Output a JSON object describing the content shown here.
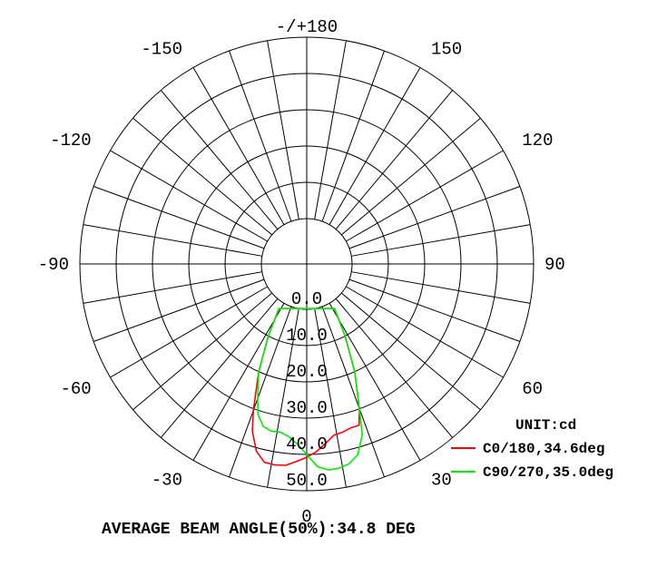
{
  "chart_data": {
    "type": "polar-line",
    "title": "",
    "unit_label": "UNIT:cd",
    "angle_labels": [
      {
        "angle": 180,
        "text": "-/+180"
      },
      {
        "angle": 150,
        "text": "150"
      },
      {
        "angle": -150,
        "text": "-150"
      },
      {
        "angle": 120,
        "text": "120"
      },
      {
        "angle": -120,
        "text": "-120"
      },
      {
        "angle": 90,
        "text": "90"
      },
      {
        "angle": -90,
        "text": "-90"
      },
      {
        "angle": 60,
        "text": "60"
      },
      {
        "angle": -60,
        "text": "-60"
      },
      {
        "angle": 30,
        "text": "30"
      },
      {
        "angle": -30,
        "text": "-30"
      },
      {
        "angle": 0,
        "text": "0"
      }
    ],
    "radial_ticks": [
      {
        "value": 0,
        "text": "0.0"
      },
      {
        "value": 10,
        "text": "10.0"
      },
      {
        "value": 20,
        "text": "20.0"
      },
      {
        "value": 30,
        "text": "30.0"
      },
      {
        "value": 40,
        "text": "40.0"
      },
      {
        "value": 50,
        "text": "50.0"
      }
    ],
    "r_range": [
      0,
      50
    ],
    "angle_step_deg": 10,
    "series": [
      {
        "name": "C0/180,34.6deg",
        "color": "#ff0000",
        "points": [
          [
            0,
            40.8
          ],
          [
            3,
            39.3
          ],
          [
            6,
            37.2
          ],
          [
            9,
            35.3
          ],
          [
            12,
            34.9
          ],
          [
            15,
            34.3
          ],
          [
            18,
            34.2
          ],
          [
            20,
            30.0
          ],
          [
            24,
            20.0
          ],
          [
            28,
            10.0
          ],
          [
            32,
            2.0
          ],
          [
            -32,
            2.0
          ],
          [
            -28,
            10.0
          ],
          [
            -24,
            20.0
          ],
          [
            -20,
            30.5
          ],
          [
            -18,
            36.0
          ],
          [
            -15,
            41.0
          ],
          [
            -12,
            43.4
          ],
          [
            -9,
            43.6
          ],
          [
            -6,
            43.3
          ],
          [
            -3,
            42.0
          ],
          [
            0,
            40.8
          ]
        ]
      },
      {
        "name": "C90/270,35.0deg",
        "color": "#00ee00",
        "points": [
          [
            0,
            40.0
          ],
          [
            3,
            43.4
          ],
          [
            6,
            44.6
          ],
          [
            9,
            44.5
          ],
          [
            12,
            43.8
          ],
          [
            15,
            41.9
          ],
          [
            18,
            37.0
          ],
          [
            20,
            30.0
          ],
          [
            24,
            20.0
          ],
          [
            28,
            10.0
          ],
          [
            32,
            2.0
          ],
          [
            -32,
            2.0
          ],
          [
            -28,
            10.0
          ],
          [
            -24,
            20.0
          ],
          [
            -20,
            27.0
          ],
          [
            -18,
            31.0
          ],
          [
            -15,
            33.8
          ],
          [
            -12,
            34.6
          ],
          [
            -9,
            34.4
          ],
          [
            -6,
            35.3
          ],
          [
            -3,
            37.2
          ],
          [
            0,
            40.0
          ]
        ]
      }
    ],
    "legend_position": "bottom-right"
  },
  "footer": {
    "text": "AVERAGE BEAM ANGLE(50%):34.8 DEG"
  }
}
